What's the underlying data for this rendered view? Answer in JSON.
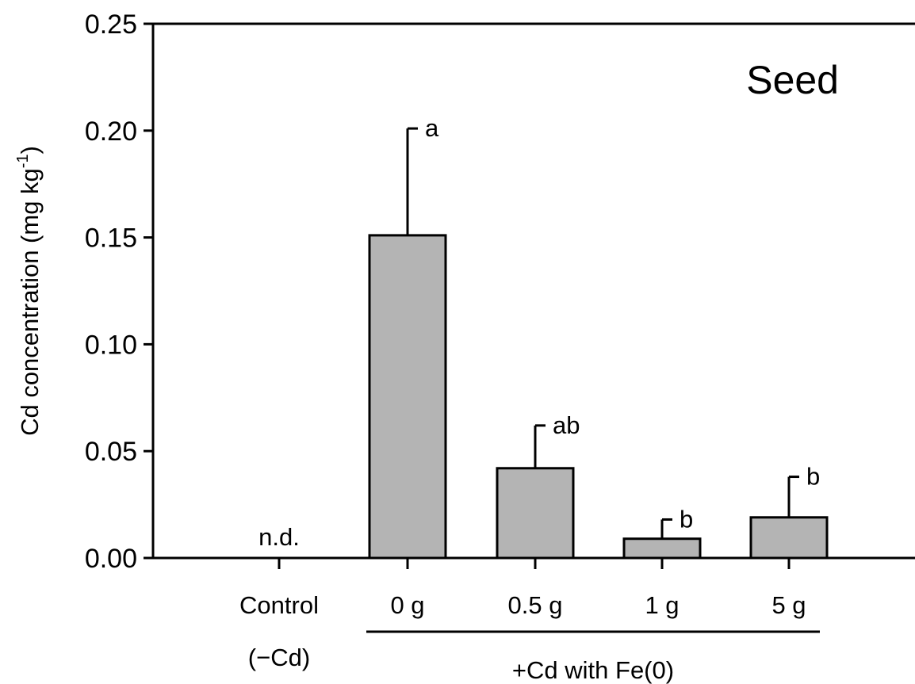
{
  "chart_data": {
    "type": "bar",
    "title": "",
    "panel_label": "Seed",
    "ylabel": "Cd concentration (mg kg",
    "ylabel_sup": "-1",
    "ylabel_close": ")",
    "ylim": [
      0,
      0.25
    ],
    "yticks": [
      "0.00",
      "0.05",
      "0.10",
      "0.15",
      "0.20",
      "0.25"
    ],
    "ytick_values": [
      0,
      0.05,
      0.1,
      0.15,
      0.2,
      0.25
    ],
    "categories": [
      "Control",
      "0 g",
      "0.5 g",
      "1 g",
      "5 g"
    ],
    "control_sublabel": "(−Cd)",
    "group_label": "+Cd with Fe(0)",
    "values": [
      null,
      0.151,
      0.042,
      0.009,
      0.019
    ],
    "errors": [
      null,
      0.05,
      0.02,
      0.009,
      0.019
    ],
    "annotations": [
      "n.d.",
      "a",
      "ab",
      "b",
      "b"
    ],
    "bar_color": "#b4b4b4",
    "grid": false,
    "legend": "none"
  }
}
